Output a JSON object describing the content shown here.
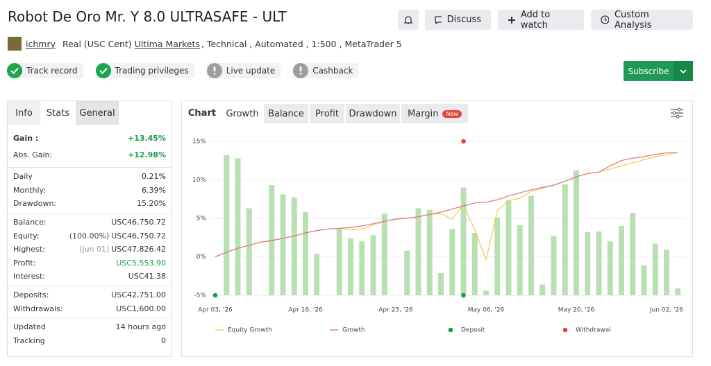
{
  "header": {
    "title": "Robot De Oro Mr. Y 8.0 ULTRASAFE - ULT",
    "author": "ichmry",
    "account": "Real (USC Cent)",
    "broker": "Ultima Markets",
    "details": ", Technical , Automated , 1:500 , MetaTrader 5"
  },
  "actions": [
    "Discuss",
    "Add to watch",
    "Custom Analysis"
  ],
  "badges": [
    {
      "label": "Track record",
      "icon": "check",
      "color": "#1ca64c"
    },
    {
      "label": "Trading privileges",
      "icon": "check",
      "color": "#1ca64c"
    },
    {
      "label": "Live update",
      "icon": "alert",
      "color": "#9e9e9e"
    },
    {
      "label": "Cashback",
      "icon": "alert",
      "color": "#9e9e9e"
    }
  ],
  "subscribe": "Subscribe",
  "stats": {
    "tabs": [
      "Info",
      "Stats",
      "General"
    ],
    "groups": [
      [
        {
          "label": "Gain :",
          "value": "+13.45%",
          "color": "#1a9c48",
          "bold": true
        },
        {
          "label": "Abs. Gain:",
          "value": "+12.98%",
          "color": "#1a9c48"
        }
      ],
      [
        {
          "label": "Daily",
          "value": "0.21%"
        },
        {
          "label": "Monthly:",
          "value": "6.39%"
        },
        {
          "label": "Drawdown:",
          "value": "15.20%"
        }
      ],
      [
        {
          "label": "Balance:",
          "value": "USC46,750.72"
        },
        {
          "label": "Equity:",
          "note": "(100.00%)",
          "value": "USC46,750.72"
        },
        {
          "label": "Highest:",
          "note": "(Jun 01)",
          "value": "USC47,826.42"
        },
        {
          "label": "Profit:",
          "value": "USC5,553.90",
          "color": "#1a9c48"
        },
        {
          "label": "Interest:",
          "value": "USC41.38"
        }
      ],
      [
        {
          "label": "Deposits:",
          "value": "USC42,751.00"
        },
        {
          "label": "Withdrawals:",
          "value": "USC1,600.00"
        }
      ],
      [
        {
          "label": "Updated",
          "value": "14 hours ago"
        },
        {
          "label": "Tracking",
          "value": "0"
        }
      ]
    ]
  },
  "chart_tabs": {
    "label": "Chart",
    "tabs": [
      "Growth",
      "Balance",
      "Profit",
      "Drawdown",
      "Margin"
    ],
    "badge": "New"
  },
  "chart_data": {
    "type": "combo",
    "categories": [
      "Apr 03, '26",
      null,
      null,
      null,
      null,
      null,
      null,
      null,
      "Apr 16, '26",
      null,
      null,
      null,
      null,
      null,
      null,
      null,
      "Apr 25, '26",
      null,
      null,
      null,
      null,
      null,
      null,
      null,
      "May 06, '26",
      null,
      null,
      null,
      null,
      null,
      null,
      null,
      "May 20, '26",
      null,
      null,
      null,
      null,
      null,
      null,
      null,
      "Jun 02, '26",
      null
    ],
    "ylim": [
      -5,
      15.7
    ],
    "yticks": [
      {
        "value": 15,
        "label": "15%"
      },
      {
        "value": 10,
        "label": "10%"
      },
      {
        "value": 5,
        "label": "5%"
      },
      {
        "value": 0,
        "label": "0%"
      },
      {
        "value": -5,
        "label": "-5%"
      }
    ],
    "grid": true,
    "bars": {
      "color": "#b9e0b3",
      "values": [
        null,
        13.2,
        12.8,
        6.3,
        null,
        9.3,
        8.1,
        7.7,
        5.8,
        0.4,
        null,
        3.7,
        2.4,
        2.0,
        2.8,
        5.6,
        null,
        0.8,
        6.3,
        6.1,
        -2.1,
        3.6,
        9.0,
        3.1,
        -4.4,
        5.1,
        7.3,
        4.1,
        7.9,
        -3.6,
        2.7,
        9.4,
        11.2,
        3.2,
        3.3,
        2.0,
        4.0,
        5.7,
        -1.1,
        1.7,
        0.9,
        -4.1
      ]
    },
    "series": [
      {
        "name": "Equity Growth",
        "type": "line",
        "color": "#f2c94c",
        "values": [
          0,
          0.6,
          1.1,
          1.5,
          1.9,
          2.1,
          2.4,
          2.7,
          3.1,
          3.4,
          3.6,
          3.7,
          3.5,
          3.6,
          4.1,
          4.6,
          4.9,
          5.0,
          5.2,
          5.5,
          5.6,
          4.9,
          6.8,
          3.5,
          -0.4,
          6.0,
          7.3,
          7.6,
          8.5,
          8.9,
          9.3,
          9.8,
          10.4,
          10.8,
          11.0,
          11.4,
          11.8,
          12.2,
          12.6,
          13.0,
          13.3,
          13.5
        ]
      },
      {
        "name": "Growth",
        "type": "line",
        "color": "#d9747c",
        "values": [
          0,
          0.6,
          1.1,
          1.5,
          1.9,
          2.1,
          2.4,
          2.7,
          3.1,
          3.4,
          3.6,
          3.7,
          3.8,
          4.0,
          4.3,
          4.6,
          4.9,
          5.0,
          5.2,
          5.5,
          5.8,
          6.2,
          6.6,
          7.0,
          7.1,
          7.4,
          7.9,
          8.3,
          8.7,
          9.0,
          9.3,
          9.8,
          10.4,
          10.8,
          11.0,
          11.8,
          12.5,
          12.8,
          13.0,
          13.3,
          13.5,
          13.5
        ]
      },
      {
        "name": "Deposit",
        "type": "scatter",
        "color": "#1a9c48",
        "values": [
          -5,
          null,
          null,
          null,
          null,
          null,
          null,
          null,
          null,
          null,
          null,
          null,
          null,
          null,
          null,
          null,
          null,
          null,
          null,
          null,
          null,
          null,
          -5,
          null,
          null,
          null,
          null,
          null,
          null,
          null,
          null,
          null,
          null,
          null,
          null,
          null,
          null,
          null,
          null,
          null,
          null,
          null
        ]
      },
      {
        "name": "Withdrawal",
        "type": "scatter",
        "color": "#e0463c",
        "values": [
          null,
          null,
          null,
          null,
          null,
          null,
          null,
          null,
          null,
          null,
          null,
          null,
          null,
          null,
          null,
          null,
          null,
          null,
          null,
          null,
          null,
          null,
          15,
          null,
          null,
          null,
          null,
          null,
          null,
          null,
          null,
          null,
          null,
          null,
          null,
          null,
          null,
          null,
          null,
          null,
          null,
          null
        ]
      }
    ]
  }
}
